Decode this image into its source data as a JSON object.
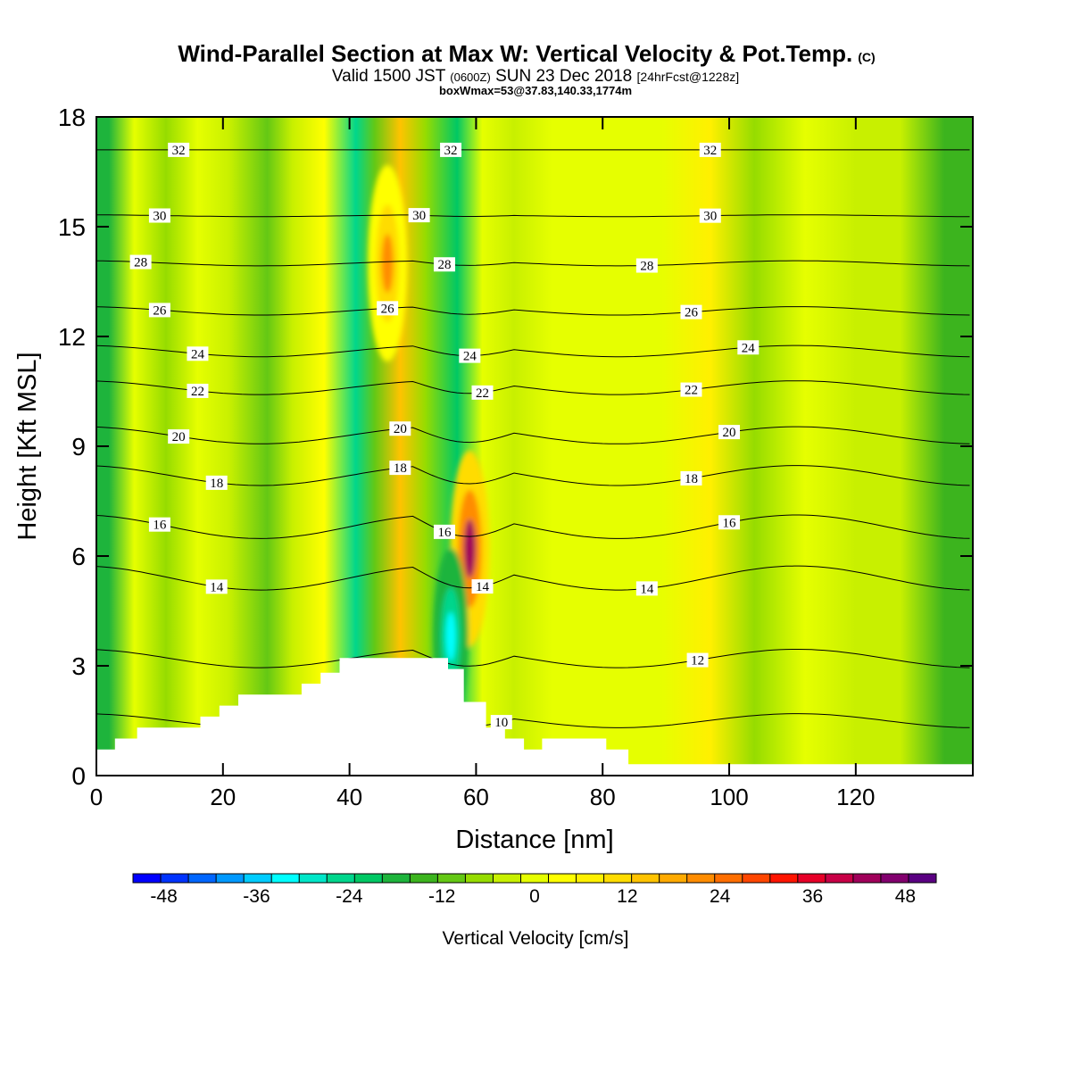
{
  "header": {
    "title": "Wind-Parallel Section at Max W: Vertical Velocity & Pot.Temp.",
    "copyright": "(C)",
    "valid_prefix": "Valid 1500 JST",
    "valid_utc": "(0600Z)",
    "valid_date": "SUN 23 Dec 2018",
    "forecast": "[24hrFcst@1228z]",
    "box_info": "boxWmax=53@37.83,140.33,1774m"
  },
  "chart_data": {
    "type": "heatmap",
    "xlabel": "Distance [nm]",
    "ylabel": "Height [Kft MSL]",
    "xlim": [
      0,
      138.5
    ],
    "ylim": [
      0,
      18
    ],
    "x_ticks": [
      0,
      20,
      40,
      60,
      80,
      100,
      120
    ],
    "y_ticks": [
      0,
      3,
      6,
      9,
      12,
      15,
      18
    ],
    "colorbar": {
      "label": "Vertical Velocity [cm/s]",
      "min": -52,
      "max": 52,
      "step": 4,
      "tick_labels": [
        "-48",
        "-36",
        "-24",
        "-12",
        "0",
        "12",
        "24",
        "36",
        "48"
      ],
      "colors": [
        "#0000ff",
        "#0033ff",
        "#0066ff",
        "#0099ff",
        "#00ccff",
        "#00ffff",
        "#00e6c8",
        "#00d68c",
        "#00c864",
        "#1eb43c",
        "#3cb41e",
        "#64c814",
        "#96dc00",
        "#c8f000",
        "#e6ff00",
        "#ffff00",
        "#fff000",
        "#ffdc00",
        "#ffc300",
        "#ffaa00",
        "#ff8c00",
        "#ff6e00",
        "#ff4600",
        "#ff1400",
        "#e60028",
        "#c80046",
        "#a0005a",
        "#82006e",
        "#5a0082"
      ]
    },
    "velocity_field_note": "",
    "vertical_velocity_bands": [
      {
        "x": 2,
        "w": -14
      },
      {
        "x": 6,
        "w": 4
      },
      {
        "x": 11,
        "w": -3
      },
      {
        "x": 16,
        "w": 6
      },
      {
        "x": 21,
        "w": 1
      },
      {
        "x": 27,
        "w": -5
      },
      {
        "x": 31,
        "w": 2
      },
      {
        "x": 36,
        "w": 8
      },
      {
        "x": 41,
        "w": -22
      },
      {
        "x": 44,
        "w": -8
      },
      {
        "x": 48,
        "w": 22
      },
      {
        "x": 52,
        "w": -4
      },
      {
        "x": 57,
        "w": -20
      },
      {
        "x": 61,
        "w": 6
      },
      {
        "x": 66,
        "w": 2
      },
      {
        "x": 72,
        "w": 4
      },
      {
        "x": 80,
        "w": 5
      },
      {
        "x": 89,
        "w": 6
      },
      {
        "x": 97,
        "w": 14
      },
      {
        "x": 104,
        "w": -4
      },
      {
        "x": 112,
        "w": 6
      },
      {
        "x": 120,
        "w": 0
      },
      {
        "x": 127,
        "w": 2
      },
      {
        "x": 134,
        "w": -10
      }
    ],
    "vertical_velocity_cores": [
      {
        "x": 59,
        "y": 6.2,
        "w": 52
      },
      {
        "x": 56,
        "y": 3.8,
        "w": -32
      },
      {
        "x": 46,
        "y": 14,
        "w": 28
      }
    ],
    "potential_temperature_isentropes": [
      {
        "theta": 32,
        "y0": 17.1,
        "label_x": [
          13,
          56,
          97
        ]
      },
      {
        "theta": 30,
        "y0": 15.3,
        "label_x": [
          10,
          51,
          97
        ]
      },
      {
        "theta": 28,
        "y0": 14.0,
        "label_x": [
          7,
          55,
          87
        ]
      },
      {
        "theta": 26,
        "y0": 12.7,
        "label_x": [
          10,
          46,
          94
        ]
      },
      {
        "theta": 24,
        "y0": 11.6,
        "label_x": [
          16,
          59,
          103
        ]
      },
      {
        "theta": 22,
        "y0": 10.6,
        "label_x": [
          16,
          61,
          94
        ]
      },
      {
        "theta": 20,
        "y0": 9.3,
        "label_x": [
          13,
          48,
          100
        ]
      },
      {
        "theta": 18,
        "y0": 8.2,
        "label_x": [
          19,
          48,
          94
        ]
      },
      {
        "theta": 16,
        "y0": 6.8,
        "label_x": [
          10,
          55,
          100
        ]
      },
      {
        "theta": 14,
        "y0": 5.4,
        "label_x": [
          19,
          61,
          87
        ]
      },
      {
        "theta": 12,
        "y0": 3.2,
        "label_x": [
          95
        ]
      },
      {
        "theta": 10,
        "y0": 1.5,
        "label_x": [
          64
        ]
      }
    ],
    "terrain_height_kft": [
      {
        "x": 0,
        "y": 0.7
      },
      {
        "x": 3,
        "y": 0.7
      },
      {
        "x": 3,
        "y": 1.0
      },
      {
        "x": 6.5,
        "y": 1.0
      },
      {
        "x": 6.5,
        "y": 1.3
      },
      {
        "x": 16.5,
        "y": 1.3
      },
      {
        "x": 16.5,
        "y": 1.6
      },
      {
        "x": 19.5,
        "y": 1.6
      },
      {
        "x": 19.5,
        "y": 1.9
      },
      {
        "x": 22.5,
        "y": 1.9
      },
      {
        "x": 22.5,
        "y": 2.2
      },
      {
        "x": 32.5,
        "y": 2.2
      },
      {
        "x": 32.5,
        "y": 2.5
      },
      {
        "x": 35.5,
        "y": 2.5
      },
      {
        "x": 35.5,
        "y": 2.8
      },
      {
        "x": 38.5,
        "y": 2.8
      },
      {
        "x": 38.5,
        "y": 3.2
      },
      {
        "x": 55.5,
        "y": 3.2
      },
      {
        "x": 55.5,
        "y": 2.9
      },
      {
        "x": 58,
        "y": 2.9
      },
      {
        "x": 58,
        "y": 2.0
      },
      {
        "x": 61.5,
        "y": 2.0
      },
      {
        "x": 61.5,
        "y": 1.3
      },
      {
        "x": 64.5,
        "y": 1.3
      },
      {
        "x": 64.5,
        "y": 1.0
      },
      {
        "x": 67.5,
        "y": 1.0
      },
      {
        "x": 67.5,
        "y": 0.7
      },
      {
        "x": 70.5,
        "y": 0.7
      },
      {
        "x": 70.5,
        "y": 1.0
      },
      {
        "x": 80.5,
        "y": 1.0
      },
      {
        "x": 80.5,
        "y": 0.7
      },
      {
        "x": 84,
        "y": 0.7
      },
      {
        "x": 84,
        "y": 0.3
      },
      {
        "x": 138.5,
        "y": 0.3
      }
    ]
  }
}
